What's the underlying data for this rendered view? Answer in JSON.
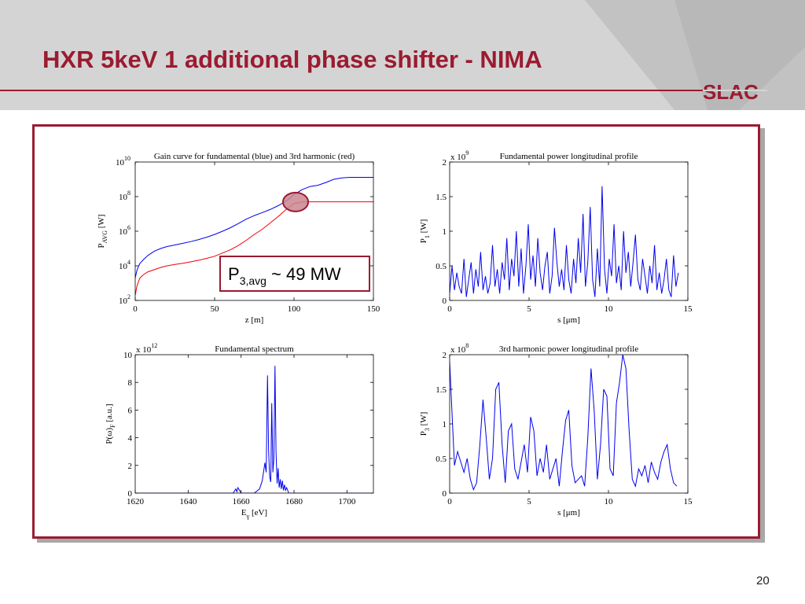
{
  "slide": {
    "title": "HXR 5keV 1 additional phase shifter - NIMA",
    "logo_text": "SLAC",
    "page_number": "20",
    "colors": {
      "title": "#9b1b30",
      "frame": "#9b1b30",
      "band": "#d4d4d4",
      "series_blue": "#0000ee",
      "series_red": "#ee0000"
    }
  },
  "chart_data": [
    {
      "id": "gain",
      "type": "line",
      "title": "Gain curve for fundamental (blue) and 3rd harmonic (red)",
      "xlabel": "z [m]",
      "ylabel_main": "P",
      "ylabel_sub": "AVG",
      "ylabel_unit": " [W]",
      "yscale": "log",
      "xlim": [
        0,
        150
      ],
      "ylim": [
        100,
        10000000000
      ],
      "xticks": [
        0,
        50,
        100,
        150
      ],
      "xtick_labels": [
        "0",
        "50",
        "100",
        "150"
      ],
      "yticks": [
        100,
        10000,
        1000000,
        100000000,
        10000000000
      ],
      "ytick_base": [
        "10",
        "10",
        "10",
        "10",
        "10"
      ],
      "ytick_exp": [
        "2",
        "4",
        "6",
        "8",
        "10"
      ],
      "annotation": {
        "main": "P",
        "sub": "3,avg",
        "text": " ~ 49 MW"
      },
      "highlight": {
        "x": 101,
        "y": 49000000
      },
      "series": [
        {
          "color": "#0000ee",
          "x": [
            0,
            1,
            2,
            3,
            5,
            8,
            12,
            16,
            20,
            25,
            30,
            35,
            40,
            45,
            50,
            55,
            60,
            65,
            70,
            75,
            80,
            85,
            90,
            95,
            100,
            105,
            110,
            115,
            120,
            125,
            130,
            135,
            140,
            145,
            150
          ],
          "y": [
            2000,
            5000,
            9000,
            14000,
            22000,
            40000,
            70000,
            100000,
            130000,
            160000,
            200000,
            250000,
            330000,
            450000,
            650000,
            1000000,
            1600000,
            2800000,
            5000000,
            8000000,
            12000000,
            18000000,
            30000000,
            55000000,
            130000000,
            250000000,
            380000000,
            450000000,
            650000000,
            1000000000,
            1200000000,
            1300000000,
            1300000000,
            1300000000,
            1300000000
          ]
        },
        {
          "color": "#ee0000",
          "x": [
            0,
            1,
            2,
            3,
            5,
            8,
            12,
            16,
            20,
            25,
            30,
            35,
            40,
            45,
            50,
            55,
            60,
            65,
            70,
            75,
            80,
            85,
            90,
            95,
            100,
            105,
            110,
            115,
            120,
            125,
            130,
            135,
            140,
            145,
            150
          ],
          "y": [
            200,
            600,
            1200,
            2000,
            3000,
            4500,
            6000,
            8000,
            10000,
            12000,
            14000,
            17000,
            21000,
            27000,
            36000,
            55000,
            85000,
            150000,
            300000,
            650000,
            1300000,
            3000000,
            7000000,
            18000000,
            40000000,
            49000000,
            50000000,
            50000000,
            50000000,
            50000000,
            50000000,
            50000000,
            50000000,
            50000000,
            50000000
          ]
        }
      ]
    },
    {
      "id": "p1",
      "type": "line",
      "title": "Fundamental power longitudinal profile",
      "xlabel": "s [μm]",
      "ylabel_main": "P",
      "ylabel_sub": "1",
      "ylabel_unit": " [W]",
      "multiplier_base": "x 10",
      "multiplier_exp": "9",
      "xlim": [
        0,
        15
      ],
      "ylim": [
        0,
        2
      ],
      "xticks": [
        0,
        5,
        10,
        15
      ],
      "xtick_labels": [
        "0",
        "5",
        "10",
        "15"
      ],
      "yticks": [
        0,
        0.5,
        1,
        1.5,
        2
      ],
      "ytick_labels": [
        "0",
        "0.5",
        "1",
        "1.5",
        "2"
      ],
      "series": [
        {
          "color": "#0000ee",
          "x": [
            0,
            0.15,
            0.3,
            0.45,
            0.6,
            0.75,
            0.9,
            1.05,
            1.2,
            1.35,
            1.5,
            1.65,
            1.8,
            1.95,
            2.1,
            2.25,
            2.4,
            2.55,
            2.7,
            2.85,
            3.0,
            3.15,
            3.3,
            3.45,
            3.6,
            3.75,
            3.9,
            4.05,
            4.2,
            4.35,
            4.5,
            4.65,
            4.8,
            4.95,
            5.1,
            5.25,
            5.4,
            5.55,
            5.7,
            5.85,
            6.0,
            6.15,
            6.3,
            6.45,
            6.6,
            6.75,
            6.9,
            7.05,
            7.2,
            7.35,
            7.5,
            7.65,
            7.8,
            7.95,
            8.1,
            8.25,
            8.4,
            8.55,
            8.7,
            8.85,
            9.0,
            9.15,
            9.3,
            9.45,
            9.6,
            9.75,
            9.9,
            10.05,
            10.2,
            10.35,
            10.5,
            10.65,
            10.8,
            10.95,
            11.1,
            11.25,
            11.4,
            11.55,
            11.7,
            11.85,
            12.0,
            12.15,
            12.3,
            12.45,
            12.6,
            12.75,
            12.9,
            13.05,
            13.2,
            13.35,
            13.5,
            13.65,
            13.8,
            13.95,
            14.1,
            14.25,
            14.4
          ],
          "y": [
            0.1,
            0.5,
            0.15,
            0.4,
            0.2,
            0.1,
            0.6,
            0.05,
            0.3,
            0.55,
            0.1,
            0.45,
            0.2,
            0.7,
            0.15,
            0.35,
            0.1,
            0.25,
            0.8,
            0.2,
            0.45,
            0.1,
            0.55,
            0.3,
            0.9,
            0.15,
            0.6,
            0.35,
            1.0,
            0.2,
            0.75,
            0.1,
            0.5,
            1.1,
            0.3,
            0.65,
            0.2,
            0.9,
            0.4,
            0.15,
            0.5,
            0.7,
            0.1,
            0.35,
            1.05,
            0.55,
            0.2,
            0.45,
            0.15,
            0.8,
            0.3,
            0.1,
            0.6,
            0.25,
            0.9,
            0.4,
            1.25,
            0.2,
            0.55,
            1.35,
            0.3,
            0.05,
            0.75,
            0.2,
            1.65,
            0.45,
            0.1,
            0.6,
            0.35,
            1.1,
            0.25,
            0.5,
            0.15,
            1.0,
            0.4,
            0.7,
            0.2,
            0.55,
            0.95,
            0.3,
            0.15,
            0.6,
            0.35,
            0.1,
            0.5,
            0.25,
            0.8,
            0.15,
            0.4,
            0.1,
            0.3,
            0.6,
            0.15,
            0.05,
            0.65,
            0.2,
            0.4
          ]
        }
      ]
    },
    {
      "id": "spectrum",
      "type": "line",
      "title": "Fundamental spectrum",
      "xlabel_main": "E",
      "xlabel_sub": "γ",
      "xlabel_unit": " [eV]",
      "ylabel_main": "P(ω)",
      "ylabel_sub": "F",
      "ylabel_unit": " [a.u.]",
      "multiplier_base": "x 10",
      "multiplier_exp": "12",
      "xlim": [
        1620,
        1710
      ],
      "ylim": [
        0,
        10
      ],
      "xticks": [
        1620,
        1640,
        1660,
        1680,
        1700
      ],
      "xtick_labels": [
        "1620",
        "1640",
        "1660",
        "1680",
        "1700"
      ],
      "yticks": [
        0,
        2,
        4,
        6,
        8,
        10
      ],
      "ytick_labels": [
        "0",
        "2",
        "4",
        "6",
        "8",
        "10"
      ],
      "series": [
        {
          "color": "#0000ee",
          "x": [
            1620,
            1657,
            1658,
            1658.4,
            1658.8,
            1660,
            1665,
            1667,
            1668,
            1669,
            1669.5,
            1670,
            1670.4,
            1670.8,
            1671.2,
            1671.6,
            1672,
            1672.4,
            1672.8,
            1673.2,
            1673.6,
            1674,
            1674.4,
            1674.8,
            1675.2,
            1675.6,
            1676,
            1676.4,
            1676.8,
            1677.2,
            1678,
            1710
          ],
          "y": [
            0,
            0,
            0.3,
            0.1,
            0.4,
            0,
            0,
            0.3,
            0.9,
            2.2,
            1.5,
            8.5,
            3,
            1.2,
            0.8,
            6.5,
            1.5,
            2.5,
            9.2,
            3,
            0.7,
            1.8,
            0.4,
            1.0,
            0.3,
            0.9,
            0.2,
            0.6,
            0.2,
            0.4,
            0,
            0
          ]
        }
      ]
    },
    {
      "id": "p3",
      "type": "line",
      "title": "3rd harmonic power longitudinal profile",
      "xlabel": "s [μm]",
      "ylabel_main": "P",
      "ylabel_sub": "3",
      "ylabel_unit": " [W]",
      "multiplier_base": "x 10",
      "multiplier_exp": "8",
      "xlim": [
        0,
        15
      ],
      "ylim": [
        0,
        2
      ],
      "xticks": [
        0,
        5,
        10,
        15
      ],
      "xtick_labels": [
        "0",
        "5",
        "10",
        "15"
      ],
      "yticks": [
        0,
        0.5,
        1,
        1.5,
        2
      ],
      "ytick_labels": [
        "0",
        "0.5",
        "1",
        "1.5",
        "2"
      ],
      "series": [
        {
          "color": "#0000ee",
          "x": [
            0,
            0.1,
            0.3,
            0.5,
            0.7,
            0.9,
            1.1,
            1.3,
            1.5,
            1.7,
            1.9,
            2.1,
            2.3,
            2.5,
            2.7,
            2.9,
            3.1,
            3.3,
            3.5,
            3.7,
            3.9,
            4.1,
            4.3,
            4.5,
            4.7,
            4.9,
            5.1,
            5.3,
            5.5,
            5.7,
            5.9,
            6.1,
            6.3,
            6.5,
            6.7,
            6.9,
            7.1,
            7.3,
            7.5,
            7.7,
            7.9,
            8.1,
            8.3,
            8.5,
            8.7,
            8.9,
            9.1,
            9.3,
            9.5,
            9.7,
            9.9,
            10.1,
            10.3,
            10.5,
            10.7,
            10.9,
            11.1,
            11.3,
            11.5,
            11.7,
            11.9,
            12.1,
            12.3,
            12.5,
            12.7,
            12.9,
            13.1,
            13.3,
            13.5,
            13.7,
            13.9,
            14.1,
            14.3
          ],
          "y": [
            1.9,
            1.4,
            0.4,
            0.6,
            0.45,
            0.3,
            0.5,
            0.2,
            0.05,
            0.15,
            0.7,
            1.35,
            0.8,
            0.2,
            0.5,
            1.5,
            1.6,
            0.7,
            0.15,
            0.9,
            1.0,
            0.35,
            0.2,
            0.45,
            0.7,
            0.3,
            1.1,
            0.9,
            0.25,
            0.5,
            0.3,
            0.7,
            0.2,
            0.35,
            0.5,
            0.1,
            0.6,
            1.05,
            1.2,
            0.4,
            0.15,
            0.2,
            0.25,
            0.1,
            0.8,
            1.8,
            1.2,
            0.2,
            0.7,
            1.5,
            1.4,
            0.35,
            0.25,
            1.3,
            1.6,
            2.0,
            1.8,
            0.9,
            0.2,
            0.1,
            0.35,
            0.25,
            0.4,
            0.15,
            0.45,
            0.3,
            0.2,
            0.45,
            0.6,
            0.7,
            0.35,
            0.15,
            0.1
          ]
        }
      ]
    }
  ]
}
